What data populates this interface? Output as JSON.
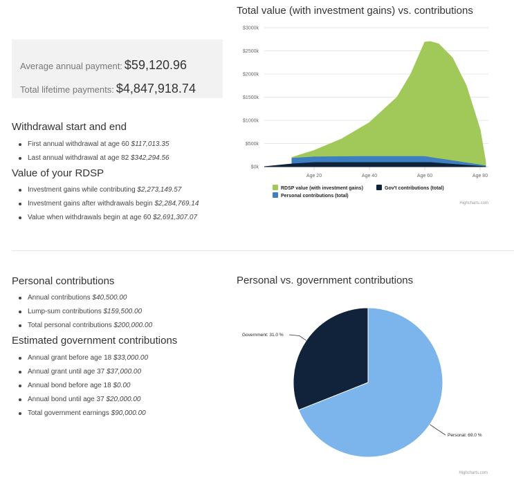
{
  "summary": {
    "avg_label": "Average annual payment:",
    "avg_value": "$59,120.96",
    "total_label": "Total lifetime payments:",
    "total_value": "$4,847,918.74"
  },
  "withdrawal": {
    "heading": "Withdrawal start and end",
    "items": [
      {
        "label": "First annual withdrawal at age 60",
        "value": "$117,013.35"
      },
      {
        "label": "Last annual withdrawal at age 82",
        "value": "$342,294.56"
      }
    ]
  },
  "rdsp_value": {
    "heading": "Value of your RDSP",
    "items": [
      {
        "label": "Investment gains while contributing",
        "value": "$2,273,149.57"
      },
      {
        "label": "Investment gains after withdrawals begin",
        "value": "$2,284,769.14"
      },
      {
        "label": "Value when withdrawals begin at age 60",
        "value": "$2,691,307.07"
      }
    ]
  },
  "personal": {
    "heading": "Personal contributions",
    "items": [
      {
        "label": "Annual contributions",
        "value": "$40,500.00"
      },
      {
        "label": "Lump-sum contributions",
        "value": "$159,500.00"
      },
      {
        "label": "Total personal contributions",
        "value": "$200,000.00"
      }
    ]
  },
  "government": {
    "heading": "Estimated government contributions",
    "items": [
      {
        "label": "Annual grant before age 18",
        "value": "$33,000.00"
      },
      {
        "label": "Annual grant until age 37",
        "value": "$37,000.00"
      },
      {
        "label": "Annual bond before age 18",
        "value": "$0.00"
      },
      {
        "label": "Annual bond until age 37",
        "value": "$20,000.00"
      },
      {
        "label": "Total government earnings",
        "value": "$90,000.00"
      }
    ]
  },
  "credit": "Highcharts.com",
  "chart_data": [
    {
      "type": "area",
      "title": "Total value (with investment gains) vs. contributions",
      "y_ticks": [
        "$0k",
        "$500k",
        "$1000k",
        "$1500k",
        "$2000k",
        "$2500k",
        "$3000k"
      ],
      "ylim": [
        0,
        3000
      ],
      "x_ticks": [
        "Age 20",
        "Age 40",
        "Age 60",
        "Age 80"
      ],
      "x_tick_values": [
        20,
        40,
        60,
        80
      ],
      "xlim": [
        2,
        83
      ],
      "series": [
        {
          "name": "RDSP value (with investment gains)",
          "color": "#a1c95a",
          "x": [
            12,
            20,
            30,
            40,
            50,
            55,
            60,
            62,
            65,
            70,
            75,
            80,
            82
          ],
          "values": [
            200,
            350,
            600,
            950,
            1500,
            2000,
            2690,
            2700,
            2650,
            2350,
            1750,
            800,
            100
          ]
        },
        {
          "name": "Gov't contributions (total)",
          "color": "#0e2339",
          "x": [
            2,
            12,
            20,
            37,
            60,
            62,
            82
          ],
          "values": [
            0,
            60,
            90,
            90,
            90,
            90,
            0
          ]
        },
        {
          "name": "Personal contributions (total)",
          "color": "#3e7fc1",
          "x": [
            12,
            20,
            37,
            60,
            62,
            82
          ],
          "values": [
            180,
            210,
            220,
            220,
            200,
            20
          ]
        }
      ],
      "legend": "bottom"
    },
    {
      "type": "pie",
      "title": "Personal vs. government contributions",
      "slices": [
        {
          "name": "Personal",
          "value": 69.0,
          "label": "Personal: 69.0 %",
          "color": "#7cb5ec"
        },
        {
          "name": "Government",
          "value": 31.0,
          "label": "Government: 31.0 %",
          "color": "#10233a"
        }
      ]
    }
  ]
}
